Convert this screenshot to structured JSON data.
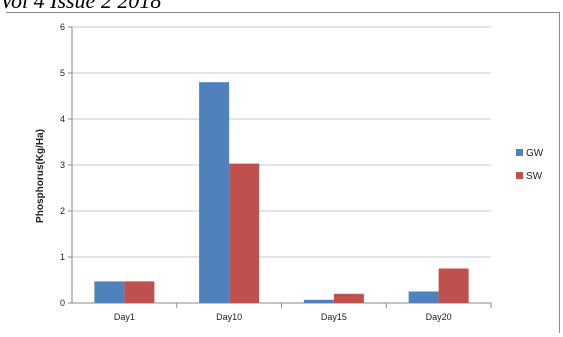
{
  "header": {
    "text": "Vol 4 Issue 2 2018"
  },
  "chart_data": {
    "type": "bar",
    "title": "",
    "xlabel": "",
    "ylabel": "Phosphorus(Kg/Ha)",
    "categories": [
      "Day1",
      "Day10",
      "Day15",
      "Day20"
    ],
    "series": [
      {
        "name": "GW",
        "color": "#4f81bd",
        "values": [
          0.47,
          4.8,
          0.07,
          0.25
        ]
      },
      {
        "name": "SW",
        "color": "#c0504d",
        "values": [
          0.47,
          3.03,
          0.2,
          0.75
        ]
      }
    ],
    "ylim": [
      0,
      6
    ],
    "yticks": [
      0,
      1,
      2,
      3,
      4,
      5,
      6
    ],
    "grid": true,
    "legend_position": "right"
  }
}
